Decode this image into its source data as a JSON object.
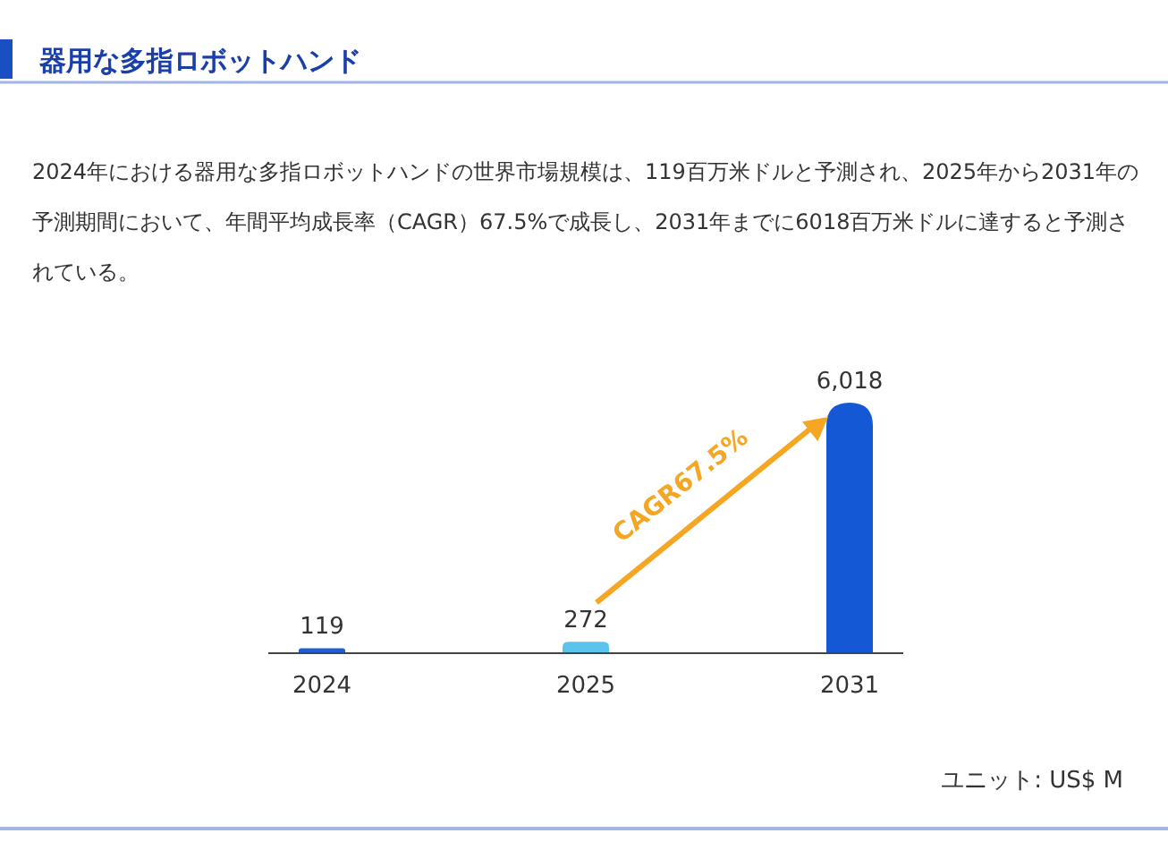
{
  "chart_data": {
    "type": "bar",
    "title": "器用な多指ロボットハンド",
    "subtitle": "2024年における器用な多指ロボットハンドの世界市場規模は、119百万米ドルと予測され、2025年から2031年の予測期間において、年間平均成長率（CAGR）67.5%で成長し、2031年までに6018百万米ドルに達すると予測されている。",
    "categories": [
      "2024",
      "2025",
      "2031"
    ],
    "values": [
      119,
      272,
      6018
    ],
    "value_labels": [
      "119",
      "272",
      "6,018"
    ],
    "colors": [
      "#1e5fd8",
      "#5cc4ec",
      "#1558d6"
    ],
    "annotations": [
      "CAGR67.5%",
      "ユニット: US$ M"
    ]
  }
}
